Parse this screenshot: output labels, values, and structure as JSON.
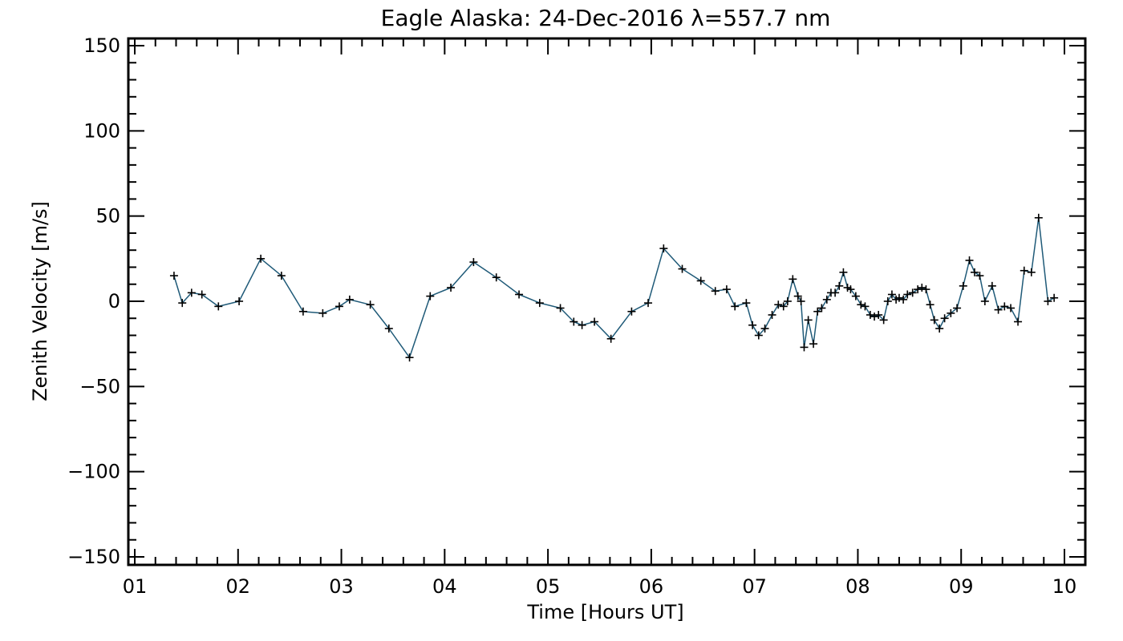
{
  "chart_data": {
    "type": "line",
    "title": "Eagle Alaska: 24-Dec-2016 λ=557.7 nm",
    "xlabel": "Time [Hours UT]",
    "ylabel": "Zenith Velocity [m/s]",
    "xlim": [
      1,
      10
    ],
    "ylim": [
      -150,
      150
    ],
    "x_ticks": [
      1,
      2,
      3,
      4,
      5,
      6,
      7,
      8,
      9,
      10
    ],
    "x_tick_labels": [
      "01",
      "02",
      "03",
      "04",
      "05",
      "06",
      "07",
      "08",
      "09",
      "10"
    ],
    "y_ticks": [
      -150,
      -100,
      -50,
      0,
      50,
      100,
      150
    ],
    "y_tick_labels": [
      "−150",
      "−100",
      "−50",
      "0",
      "50",
      "100",
      "150"
    ],
    "grid": false,
    "line_color": "#1f5a78",
    "marker": "+",
    "marker_color": "#000000",
    "series": [
      {
        "x": [
          1.38,
          1.46,
          1.55,
          1.65,
          1.81,
          2.01,
          2.22,
          2.42,
          2.63,
          2.82,
          2.98,
          3.08,
          3.28,
          3.46,
          3.66,
          3.86,
          4.06,
          4.28,
          4.5,
          4.72,
          4.92,
          5.12,
          5.25,
          5.33,
          5.45,
          5.61,
          5.81,
          5.97,
          6.12,
          6.3,
          6.48,
          6.62,
          6.73,
          6.81,
          6.92,
          6.98,
          7.04,
          7.1,
          7.17,
          7.23,
          7.28,
          7.32,
          7.37,
          7.42,
          7.45,
          7.48,
          7.52,
          7.57,
          7.61,
          7.65,
          7.7,
          7.74,
          7.78,
          7.82,
          7.86,
          7.9,
          7.93,
          7.98,
          8.03,
          8.07,
          8.12,
          8.16,
          8.2,
          8.25,
          8.29,
          8.33,
          8.37,
          8.4,
          8.44,
          8.48,
          8.53,
          8.58,
          8.62,
          8.66,
          8.7,
          8.74,
          8.79,
          8.84,
          8.9,
          8.96,
          9.02,
          9.08,
          9.13,
          9.18,
          9.23,
          9.3,
          9.36,
          9.42,
          9.48,
          9.55,
          9.61,
          9.68,
          9.75,
          9.84,
          9.9
        ],
        "y": [
          15,
          -1,
          5,
          4,
          -3,
          0,
          25,
          15,
          -6,
          -7,
          -3,
          1,
          -2,
          -16,
          -33,
          3,
          8,
          23,
          14,
          4,
          -1,
          -4,
          -12,
          -14,
          -12,
          -22,
          -6,
          -1,
          31,
          19,
          12,
          6,
          7,
          -3,
          -1,
          -14,
          -20,
          -16,
          -8,
          -2,
          -3,
          0,
          13,
          3,
          0,
          -27,
          -11,
          -25,
          -6,
          -4,
          1,
          5,
          5,
          9,
          17,
          8,
          7,
          3,
          -2,
          -3,
          -8,
          -9,
          -8,
          -11,
          0,
          4,
          1,
          2,
          1,
          4,
          5,
          7,
          8,
          7,
          -2,
          -11,
          -16,
          -10,
          -7,
          -4,
          9,
          24,
          17,
          15,
          0,
          9,
          -5,
          -3,
          -4,
          -12,
          18,
          17,
          49,
          0,
          2
        ]
      }
    ]
  }
}
